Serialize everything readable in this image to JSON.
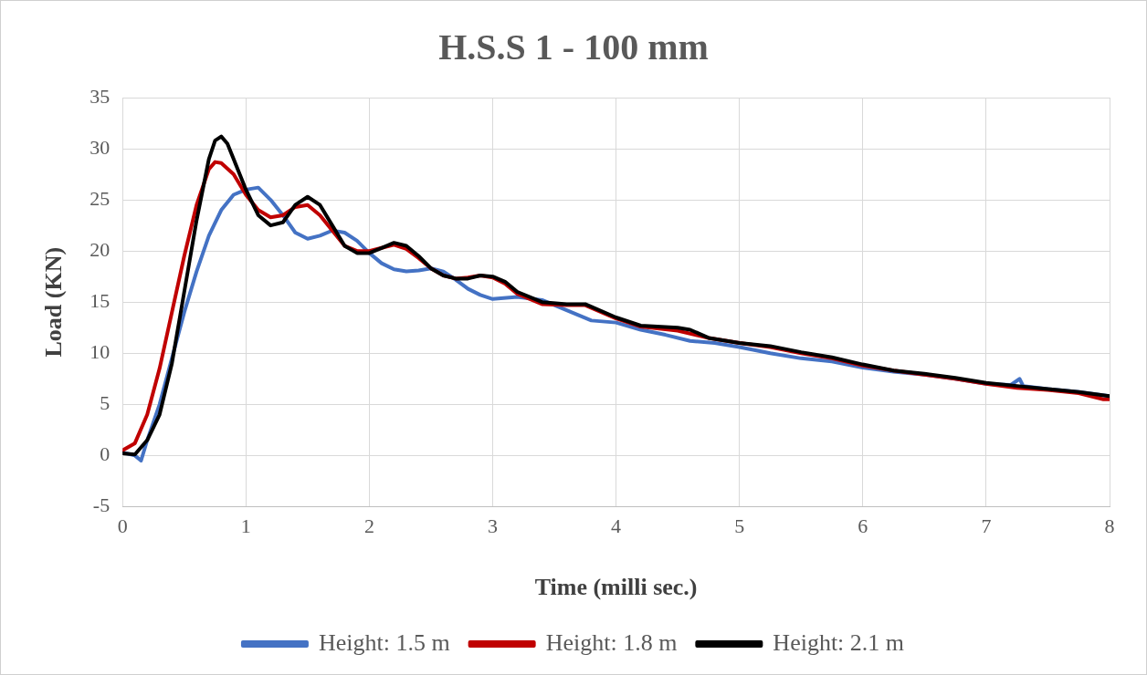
{
  "chart_data": {
    "type": "line",
    "title": "H.S.S 1 - 100 mm",
    "xlabel": "Time (milli sec.)",
    "ylabel": "Load (KN)",
    "xlim": [
      0,
      8
    ],
    "xticks": [
      0,
      1,
      2,
      3,
      4,
      5,
      6,
      7,
      8
    ],
    "ylim": [
      -5,
      35
    ],
    "yticks": [
      -5,
      0,
      5,
      10,
      15,
      20,
      25,
      30,
      35
    ],
    "grid": true,
    "legend": "bottom",
    "marker": "none",
    "line_style": "solid",
    "series": [
      {
        "name": "Height: 1.5 m",
        "color": "#4472c4",
        "x": [
          0,
          0.1,
          0.15,
          0.2,
          0.3,
          0.4,
          0.5,
          0.6,
          0.7,
          0.8,
          0.9,
          1.0,
          1.1,
          1.2,
          1.3,
          1.4,
          1.5,
          1.6,
          1.7,
          1.8,
          1.9,
          2.0,
          2.1,
          2.2,
          2.3,
          2.4,
          2.5,
          2.6,
          2.7,
          2.8,
          2.9,
          3.0,
          3.2,
          3.4,
          3.6,
          3.8,
          4.0,
          4.2,
          4.4,
          4.6,
          4.8,
          5.0,
          5.25,
          5.5,
          5.75,
          6.0,
          6.25,
          6.5,
          6.75,
          7.0,
          7.2,
          7.27,
          7.3,
          7.5,
          7.75,
          8.0
        ],
        "values": [
          0.3,
          0,
          -0.5,
          1.5,
          5,
          9.5,
          14,
          18,
          21.5,
          24,
          25.5,
          26,
          26.2,
          25,
          23.5,
          21.8,
          21.2,
          21.5,
          22,
          21.8,
          21,
          19.8,
          18.8,
          18.2,
          18,
          18.1,
          18.3,
          18,
          17.2,
          16.3,
          15.7,
          15.3,
          15.5,
          15.2,
          14.2,
          13.2,
          13,
          12.3,
          11.8,
          11.2,
          11,
          10.6,
          10,
          9.5,
          9.2,
          8.6,
          8.2,
          7.9,
          7.5,
          7,
          6.9,
          7.5,
          6.8,
          6.5,
          6.2,
          5.8
        ]
      },
      {
        "name": "Height: 1.8 m",
        "color": "#c00000",
        "x": [
          0,
          0.1,
          0.2,
          0.3,
          0.4,
          0.5,
          0.6,
          0.7,
          0.75,
          0.8,
          0.9,
          1.0,
          1.1,
          1.2,
          1.3,
          1.4,
          1.5,
          1.6,
          1.7,
          1.8,
          1.9,
          2.0,
          2.1,
          2.2,
          2.3,
          2.4,
          2.5,
          2.6,
          2.7,
          2.8,
          2.9,
          3.0,
          3.1,
          3.2,
          3.4,
          3.6,
          3.75,
          4.0,
          4.2,
          4.5,
          4.75,
          5.0,
          5.25,
          5.5,
          5.75,
          6.0,
          6.25,
          6.5,
          6.75,
          7.0,
          7.25,
          7.5,
          7.75,
          7.95,
          8.0
        ],
        "values": [
          0.5,
          1.2,
          4,
          8.5,
          14,
          19.5,
          24.5,
          28,
          28.7,
          28.6,
          27.5,
          25.5,
          24,
          23.3,
          23.5,
          24.3,
          24.5,
          23.5,
          22,
          20.5,
          20,
          20,
          20.3,
          20.6,
          20.2,
          19.3,
          18.3,
          17.6,
          17.3,
          17.4,
          17.6,
          17.4,
          16.8,
          15.8,
          14.8,
          14.7,
          14.7,
          13.4,
          12.6,
          12.2,
          11.5,
          11,
          10.6,
          10,
          9.5,
          8.8,
          8.3,
          7.9,
          7.5,
          7,
          6.6,
          6.4,
          6.1,
          5.5,
          5.5
        ]
      },
      {
        "name": "Height: 2.1 m",
        "color": "#000000",
        "x": [
          0,
          0.1,
          0.2,
          0.3,
          0.4,
          0.5,
          0.6,
          0.7,
          0.75,
          0.8,
          0.85,
          0.9,
          1.0,
          1.1,
          1.2,
          1.3,
          1.4,
          1.5,
          1.6,
          1.7,
          1.8,
          1.9,
          2.0,
          2.1,
          2.2,
          2.3,
          2.4,
          2.5,
          2.6,
          2.7,
          2.8,
          2.9,
          3.0,
          3.1,
          3.2,
          3.4,
          3.6,
          3.75,
          4.0,
          4.2,
          4.5,
          4.6,
          4.75,
          5.0,
          5.25,
          5.5,
          5.75,
          6.0,
          6.25,
          6.5,
          6.75,
          7.0,
          7.25,
          7.5,
          7.75,
          8.0
        ],
        "values": [
          0.2,
          0.1,
          1.5,
          4,
          9,
          16,
          23,
          29,
          30.8,
          31.2,
          30.5,
          29,
          26,
          23.5,
          22.5,
          22.8,
          24.5,
          25.3,
          24.5,
          22.5,
          20.5,
          19.8,
          19.8,
          20.3,
          20.8,
          20.5,
          19.5,
          18.3,
          17.6,
          17.3,
          17.3,
          17.6,
          17.5,
          17,
          16,
          15,
          14.8,
          14.8,
          13.5,
          12.7,
          12.5,
          12.3,
          11.5,
          11,
          10.7,
          10.1,
          9.6,
          8.9,
          8.3,
          8,
          7.6,
          7.1,
          6.8,
          6.5,
          6.2,
          5.8
        ]
      }
    ]
  }
}
